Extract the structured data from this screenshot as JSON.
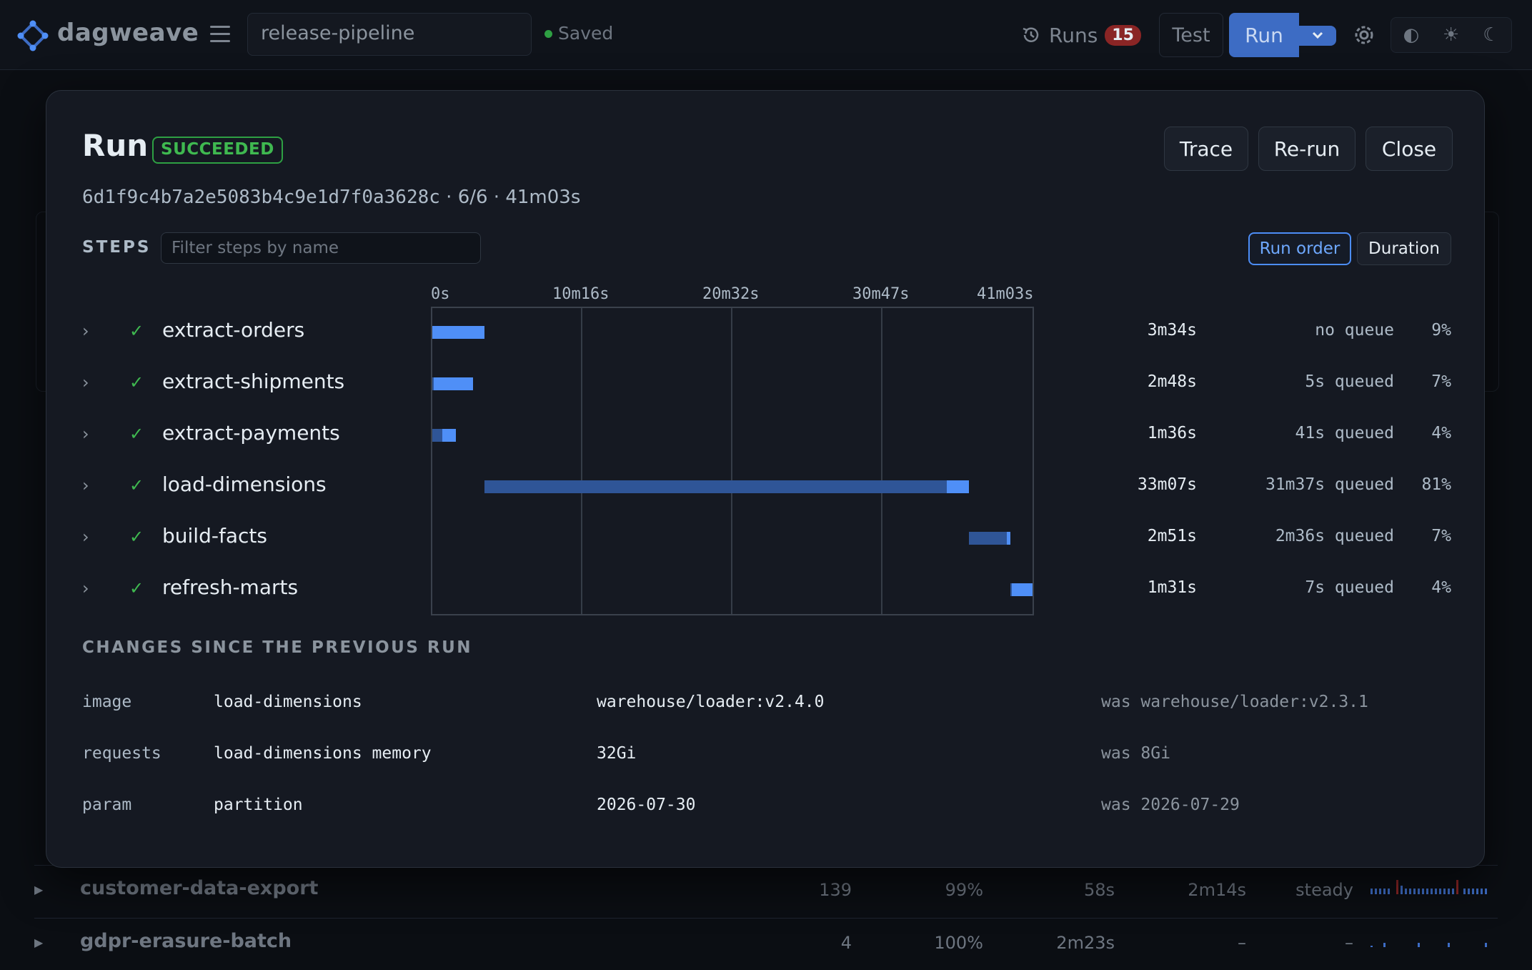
{
  "app": {
    "name": "dagweave",
    "pipeline_name": "release-pipeline",
    "saved_label": "Saved"
  },
  "toolbar": {
    "runs_label": "Runs",
    "runs_count": "15",
    "test_label": "Test",
    "run_label": "Run",
    "theme_options": [
      "◐",
      "☀",
      "☾"
    ]
  },
  "background_page": {
    "rows": [
      {
        "name": "customer-data-export",
        "runs": "139",
        "success": "99%",
        "p50": "58s",
        "p95": "2m14s",
        "trend": "steady"
      },
      {
        "name": "gdpr-erasure-batch",
        "runs": "4",
        "success": "100%",
        "p50": "2m23s",
        "p95": "–",
        "trend": "–"
      }
    ]
  },
  "modal": {
    "title": "Run",
    "status": "SUCCEEDED",
    "buttons": {
      "trace": "Trace",
      "rerun": "Re-run",
      "close": "Close"
    },
    "run_hash": "6d1f9c4b7a2e5083b4c9e1d7f0a3628c",
    "meta_rest": " · 6/6 · 41m03s",
    "steps_label": "STEPS",
    "filter_placeholder": "Filter steps by name",
    "sort": {
      "run_order": "Run order",
      "duration": "Duration"
    },
    "timeline_ticks": [
      "0s",
      "10m16s",
      "20m32s",
      "30m47s",
      "41m03s"
    ],
    "total_seconds": 2463,
    "steps": [
      {
        "name": "extract-orders",
        "status": "succeeded",
        "duration": "3m34s",
        "queue": "no queue",
        "pct": "9%",
        "queue_start_s": 0,
        "run_start_s": 0,
        "end_s": 214
      },
      {
        "name": "extract-shipments",
        "status": "succeeded",
        "duration": "2m48s",
        "queue": "5s queued",
        "pct": "7%",
        "queue_start_s": 0,
        "run_start_s": 5,
        "end_s": 168
      },
      {
        "name": "extract-payments",
        "status": "succeeded",
        "duration": "1m36s",
        "queue": "41s queued",
        "pct": "4%",
        "queue_start_s": 0,
        "run_start_s": 41,
        "end_s": 96
      },
      {
        "name": "load-dimensions",
        "status": "succeeded",
        "duration": "33m07s",
        "queue": "31m37s queued",
        "pct": "81%",
        "queue_start_s": 214,
        "run_start_s": 2111,
        "end_s": 2201
      },
      {
        "name": "build-facts",
        "status": "succeeded",
        "duration": "2m51s",
        "queue": "2m36s queued",
        "pct": "7%",
        "queue_start_s": 2201,
        "run_start_s": 2357,
        "end_s": 2372
      },
      {
        "name": "refresh-marts",
        "status": "succeeded",
        "duration": "1m31s",
        "queue": "7s queued",
        "pct": "4%",
        "queue_start_s": 2372,
        "run_start_s": 2379,
        "end_s": 2463
      }
    ],
    "changes_label": "CHANGES SINCE THE PREVIOUS RUN",
    "changes": [
      {
        "kind": "image",
        "target": "load-dimensions",
        "value": "warehouse/loader:v2.4.0",
        "was": "was warehouse/loader:v2.3.1"
      },
      {
        "kind": "requests",
        "target": "load-dimensions memory",
        "value": "32Gi",
        "was": "was 8Gi"
      },
      {
        "kind": "param",
        "target": "partition",
        "value": "2026-07-30",
        "was": "was 2026-07-29"
      }
    ]
  },
  "colors": {
    "accent": "#4f8ff7",
    "queue": "#2f5597",
    "success": "#3fb950",
    "badge_red": "#8a2525"
  }
}
